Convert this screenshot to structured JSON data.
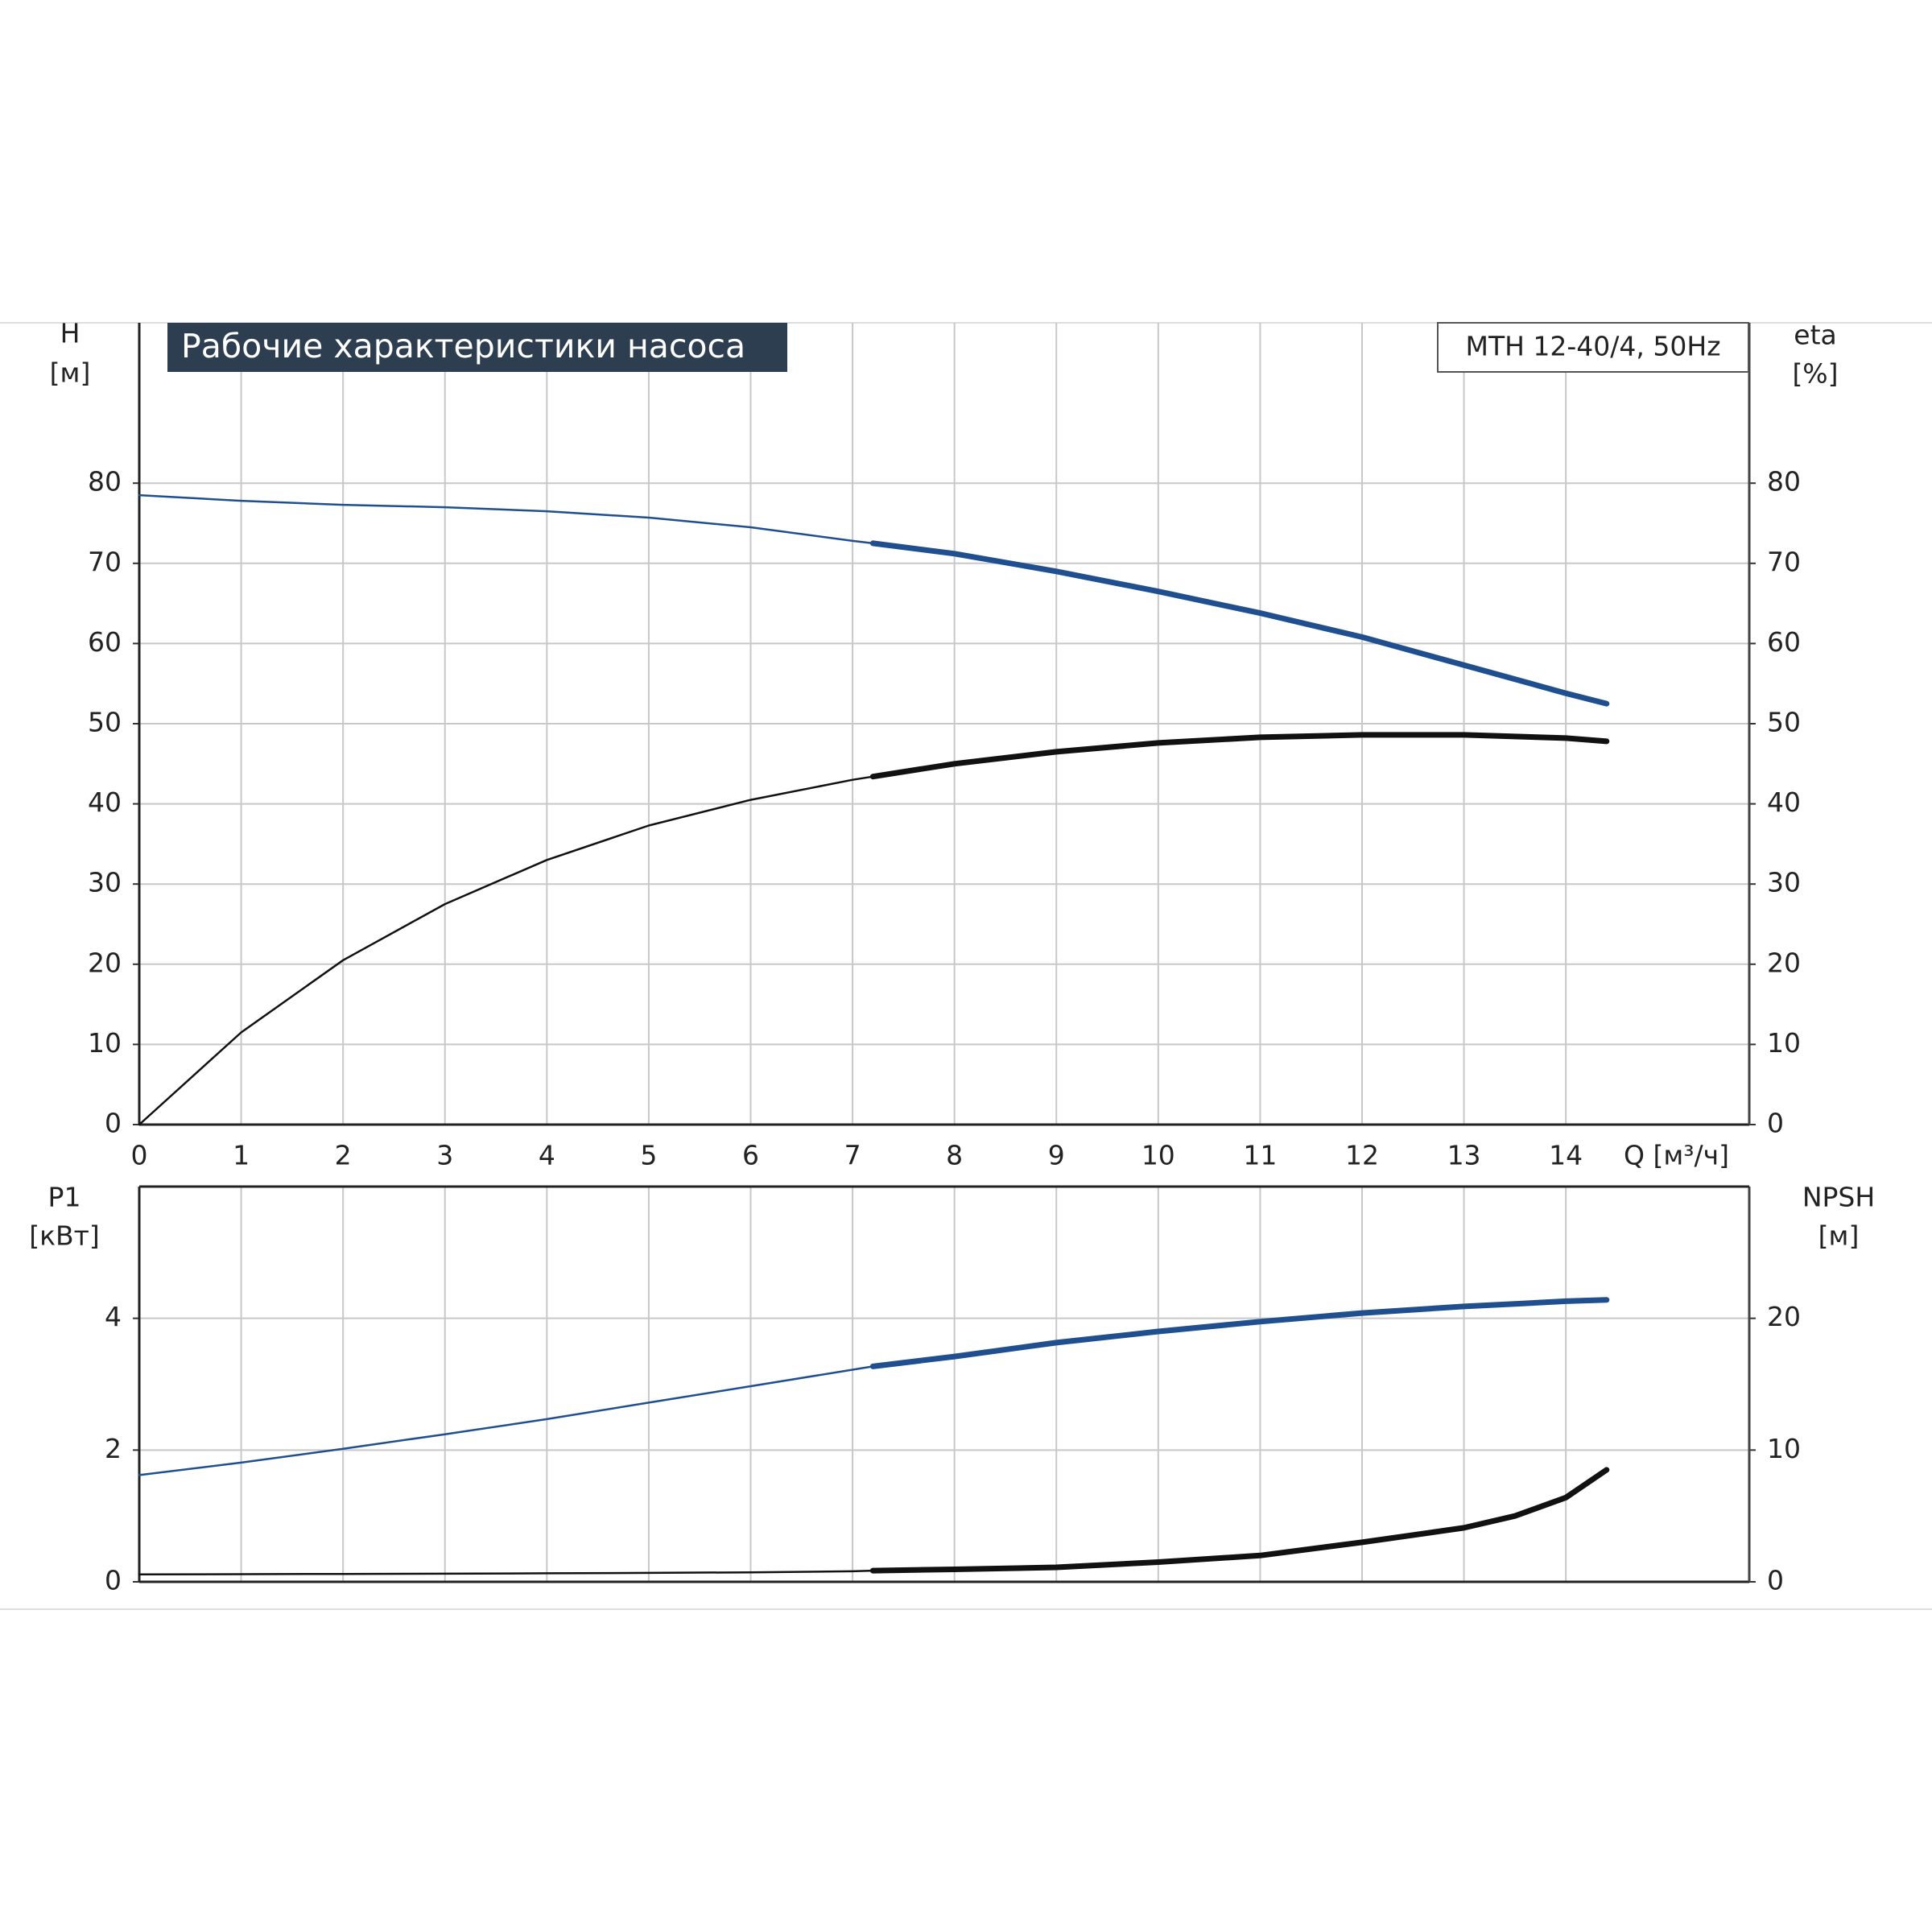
{
  "chart_data": [
    {
      "type": "line",
      "title": "Рабочие характеристики насоса",
      "annotation": "MTH 12-40/4, 50Hz",
      "x_label": "Q [м³/ч]",
      "y_label": [
        "H",
        "[м]"
      ],
      "y2_label": [
        "eta",
        "[%]"
      ],
      "x": [
        0,
        1,
        2,
        3,
        4,
        5,
        6,
        7,
        7.2,
        8,
        9,
        10,
        11,
        12,
        13,
        14,
        14.4
      ],
      "xlim": [
        0,
        15.8
      ],
      "xticks": [
        0,
        1,
        2,
        3,
        4,
        5,
        6,
        7,
        8,
        9,
        10,
        11,
        12,
        13,
        14
      ],
      "ylim": [
        0,
        100
      ],
      "yticks": [
        0,
        10,
        20,
        30,
        40,
        50,
        60,
        70,
        80
      ],
      "y2lim": [
        0,
        100
      ],
      "y2ticks": [
        0,
        10,
        20,
        30,
        40,
        50,
        60,
        70,
        80
      ],
      "grid": true,
      "bold_from": 7.2,
      "series": [
        {
          "color": "#1f4f8f",
          "values": [
            78.5,
            77.8,
            77.3,
            77,
            76.5,
            75.7,
            74.5,
            72.8,
            72.5,
            71.2,
            69,
            66.5,
            63.8,
            60.8,
            57.3,
            53.8,
            52.5
          ]
        },
        {
          "color": "#111111",
          "axis": "y2",
          "values": [
            0,
            11.5,
            20.5,
            27.5,
            33,
            37.3,
            40.5,
            43,
            43.4,
            45,
            46.5,
            47.6,
            48.3,
            48.6,
            48.6,
            48.2,
            47.8
          ]
        }
      ]
    },
    {
      "type": "line",
      "y_label": [
        "P1",
        "[кВт]"
      ],
      "y2_label": [
        "NPSH",
        "[м]"
      ],
      "x": [
        0,
        1,
        2,
        3,
        4,
        5,
        6,
        7,
        7.2,
        8,
        9,
        10,
        11,
        12,
        13,
        13.5,
        14,
        14.4
      ],
      "ylim": [
        0,
        6
      ],
      "yticks": [
        0,
        2,
        4
      ],
      "y2lim": [
        0,
        30
      ],
      "y2ticks": [
        0,
        10,
        20
      ],
      "grid": true,
      "bold_from": 7.2,
      "series": [
        {
          "color": "#1f4f8f",
          "values": [
            1.62,
            1.81,
            2.02,
            2.24,
            2.47,
            2.72,
            2.97,
            3.22,
            3.27,
            3.42,
            3.63,
            3.8,
            3.95,
            4.08,
            4.18,
            4.22,
            4.26,
            4.28
          ]
        },
        {
          "color": "#111111",
          "axis": "y2",
          "values": [
            0.56,
            0.58,
            0.6,
            0.62,
            0.65,
            0.68,
            0.72,
            0.8,
            0.85,
            0.95,
            1.1,
            1.5,
            2.0,
            3.0,
            4.1,
            5.0,
            6.4,
            8.5
          ]
        }
      ]
    }
  ]
}
